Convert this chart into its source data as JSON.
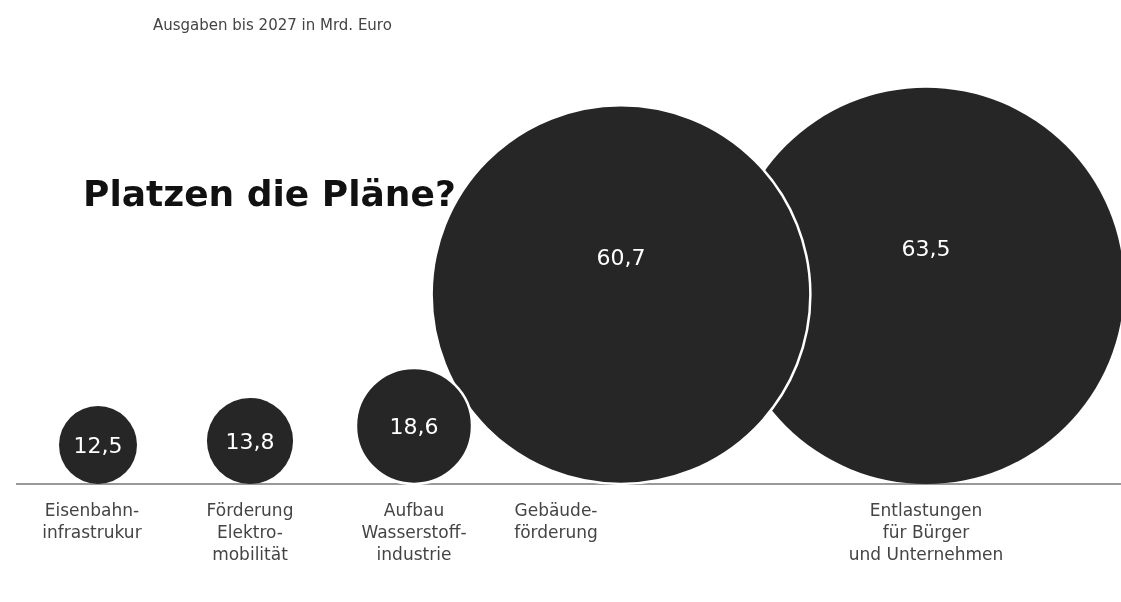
{
  "chart_data": {
    "type": "other",
    "title": "Platzen die Pläne?",
    "subtitle": "Ausgaben bis 2027 in Mrd. Euro",
    "categories": [
      "Eisenbahn-\ninfrastrukur",
      "Förderung\nElektro-\nmobilität",
      "Aufbau\nWasserstoff-\nindustrie",
      "Gebäude-\nförderung",
      "Entlastungen\nfür Bürger\nund Unternehmen"
    ],
    "values": [
      12.5,
      13.8,
      18.6,
      60.7,
      63.5
    ],
    "color": "#262626",
    "value_labels": [
      "12,5",
      "13,8",
      "18,6",
      "60,7",
      "63,5"
    ]
  }
}
